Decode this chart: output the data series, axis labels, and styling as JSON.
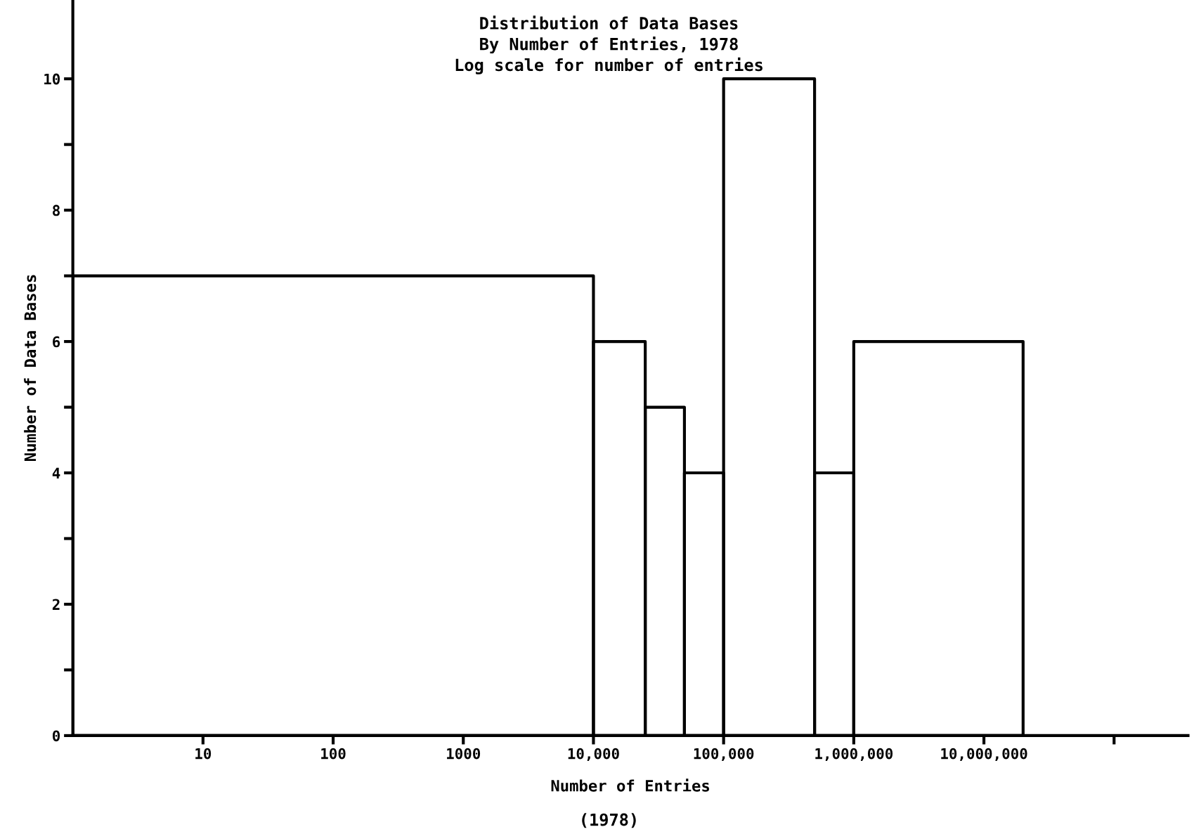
{
  "chart_data": {
    "type": "histogram",
    "title": "Distribution of Data Bases",
    "subtitle": "By Number of Entries, 1978",
    "annotations": [
      "Log scale for number of entries",
      "(1978)"
    ],
    "xlabel": "Number of Entries",
    "ylabel": "Number of Data Bases",
    "bins": [
      1,
      10000,
      25000,
      50000,
      100000,
      500000,
      1000000,
      20000000
    ],
    "values": [
      7,
      6,
      5,
      4,
      10,
      4,
      6
    ],
    "color": "#000000",
    "log": "x",
    "xlim": [
      1,
      370000000
    ],
    "xticks": [
      10,
      100,
      1000,
      {
        "value": 10000,
        "label": "10,000"
      },
      {
        "value": 100000,
        "label": "100,000"
      },
      {
        "value": 1000000,
        "label": "1,000,000"
      },
      {
        "value": 10000000,
        "label": "10,000,000"
      },
      {
        "value": 100000000,
        "label": null
      }
    ],
    "ylim": [
      0,
      11.2
    ],
    "yticks": [
      0,
      {
        "value": 1,
        "label": null
      },
      2,
      {
        "value": 3,
        "label": null
      },
      4,
      {
        "value": 5,
        "label": null
      },
      6,
      {
        "value": 7,
        "label": null
      },
      8,
      {
        "value": 9,
        "label": null
      },
      10
    ],
    "grid": false,
    "legend": false
  }
}
